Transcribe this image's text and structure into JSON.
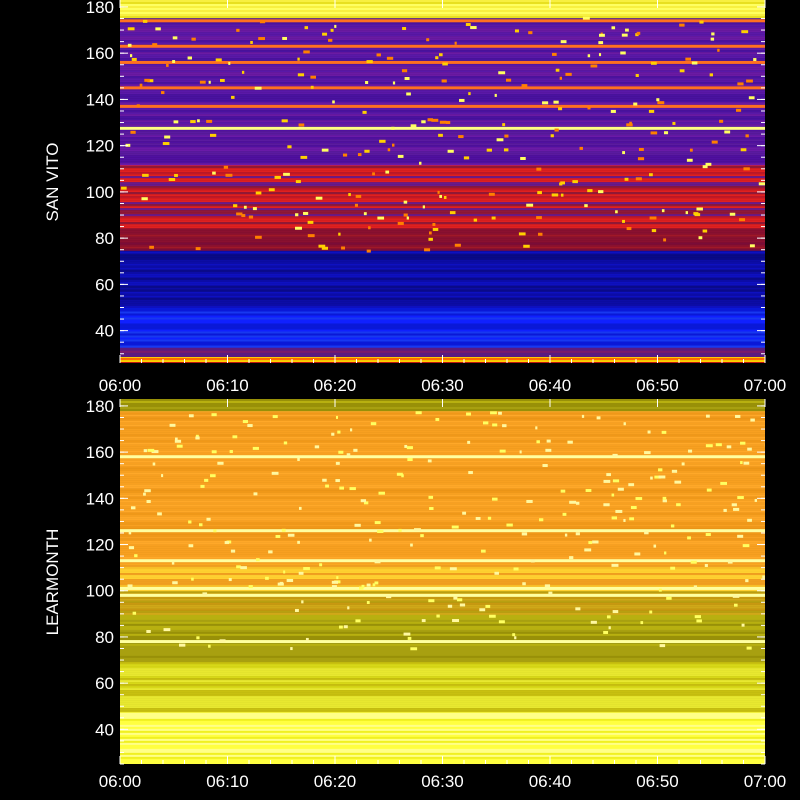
{
  "chart_data": [
    {
      "type": "heatmap",
      "ylabel": "SAN VITO",
      "ylim": [
        26,
        183
      ],
      "yticks": [
        40,
        60,
        80,
        100,
        120,
        140,
        160,
        180
      ],
      "xticks": [
        "06:00",
        "06:10",
        "06:20",
        "06:30",
        "06:40",
        "06:50",
        "07:00"
      ],
      "xlim": [
        "06:00",
        "07:00"
      ],
      "colormap": "blue-purple-red-yellow",
      "bands": [
        {
          "y0": 26,
          "y1": 29,
          "level": "high-speckled"
        },
        {
          "y0": 29,
          "y1": 33,
          "level": "purple-red"
        },
        {
          "y0": 33,
          "y1": 50,
          "level": "blue-bright"
        },
        {
          "y0": 50,
          "y1": 75,
          "level": "blue-dark"
        },
        {
          "y0": 75,
          "y1": 85,
          "level": "dark-red"
        },
        {
          "y0": 85,
          "y1": 112,
          "level": "red-purple-stripes"
        },
        {
          "y0": 112,
          "y1": 128,
          "level": "purple"
        },
        {
          "y0": 128,
          "y1": 176,
          "level": "purple-with-red-lines"
        },
        {
          "y0": 176,
          "y1": 183,
          "level": "yellow"
        }
      ],
      "strong_lines": [
        127.5,
        163,
        145,
        137,
        156,
        174
      ]
    },
    {
      "type": "heatmap",
      "ylabel": "LEARMONTH",
      "ylim": [
        25,
        183
      ],
      "yticks": [
        40,
        60,
        80,
        100,
        120,
        140,
        160,
        180
      ],
      "xticks": [
        "06:00",
        "06:10",
        "06:20",
        "06:30",
        "06:40",
        "06:50",
        "07:00"
      ],
      "xlim": [
        "06:00",
        "07:00"
      ],
      "colormap": "orange-olive-yellow",
      "bands": [
        {
          "y0": 25,
          "y1": 48,
          "level": "bright-yellow"
        },
        {
          "y0": 48,
          "y1": 70,
          "level": "olive-yellow"
        },
        {
          "y0": 70,
          "y1": 90,
          "level": "olive"
        },
        {
          "y0": 90,
          "y1": 100,
          "level": "orange-olive"
        },
        {
          "y0": 100,
          "y1": 112,
          "level": "orange-yellow-stripes"
        },
        {
          "y0": 112,
          "y1": 178,
          "level": "orange"
        },
        {
          "y0": 178,
          "y1": 183,
          "level": "olive"
        }
      ],
      "strong_lines": [
        158,
        126,
        113,
        101,
        98,
        78
      ]
    }
  ]
}
